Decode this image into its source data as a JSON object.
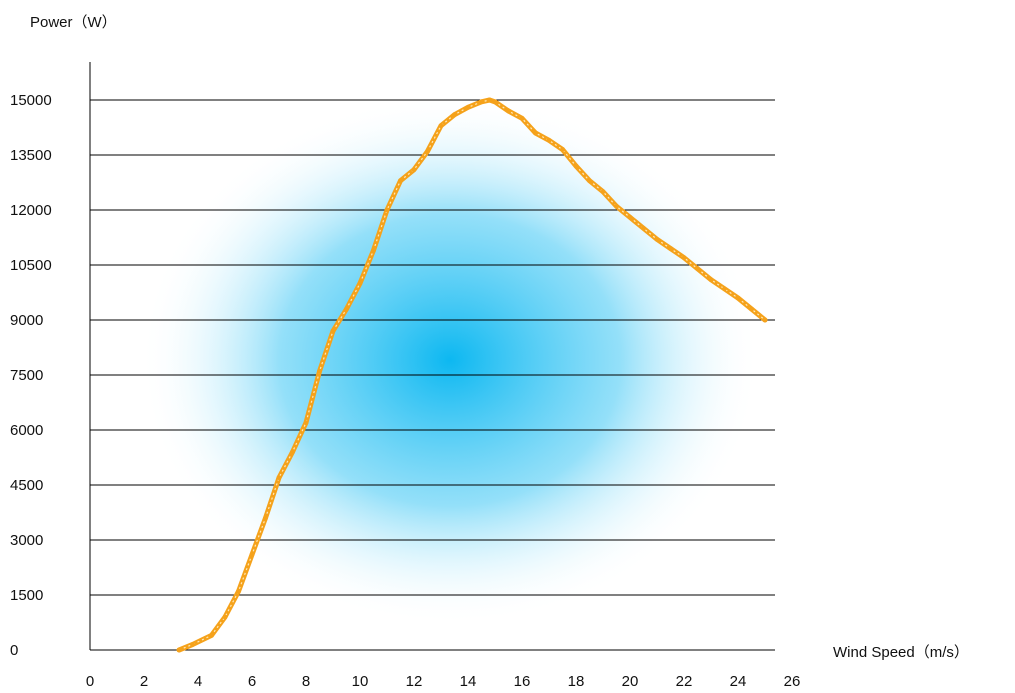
{
  "chart_data": {
    "type": "line",
    "title": "",
    "ylabel": "Power（W）",
    "xlabel": "Wind Speed（m/s）",
    "xlim": [
      0,
      26
    ],
    "ylim": [
      0,
      15000
    ],
    "x_ticks": [
      0,
      2,
      4,
      6,
      8,
      10,
      12,
      14,
      16,
      18,
      20,
      22,
      24,
      26
    ],
    "y_ticks": [
      0,
      1500,
      3000,
      4500,
      6000,
      7500,
      9000,
      10500,
      12000,
      13500,
      15000
    ],
    "grid": "horizontal",
    "colors": {
      "line": "#f5a21b",
      "grid": "#000000",
      "background_glow": "#00b4f0"
    },
    "series": [
      {
        "name": "",
        "x": [
          3.3,
          3.8,
          4.5,
          5.0,
          5.5,
          6.0,
          6.5,
          7.0,
          7.5,
          8.0,
          8.5,
          9.0,
          9.5,
          10.0,
          10.5,
          11.0,
          11.5,
          12.0,
          12.5,
          13.0,
          13.5,
          14.0,
          14.5,
          14.8,
          15.0,
          15.5,
          16.0,
          16.5,
          17.0,
          17.5,
          18.0,
          18.5,
          19.0,
          19.5,
          20.0,
          20.5,
          21.0,
          21.5,
          22.0,
          22.5,
          23.0,
          23.5,
          24.0,
          24.5,
          25.0
        ],
        "y": [
          0,
          150,
          400,
          900,
          1600,
          2600,
          3600,
          4700,
          5400,
          6200,
          7600,
          8700,
          9300,
          10000,
          10900,
          12000,
          12800,
          13100,
          13600,
          14300,
          14600,
          14800,
          14950,
          15000,
          14950,
          14700,
          14500,
          14100,
          13900,
          13650,
          13200,
          12800,
          12500,
          12100,
          11800,
          11500,
          11200,
          10950,
          10700,
          10400,
          10100,
          9850,
          9600,
          9300,
          9000
        ]
      }
    ]
  }
}
